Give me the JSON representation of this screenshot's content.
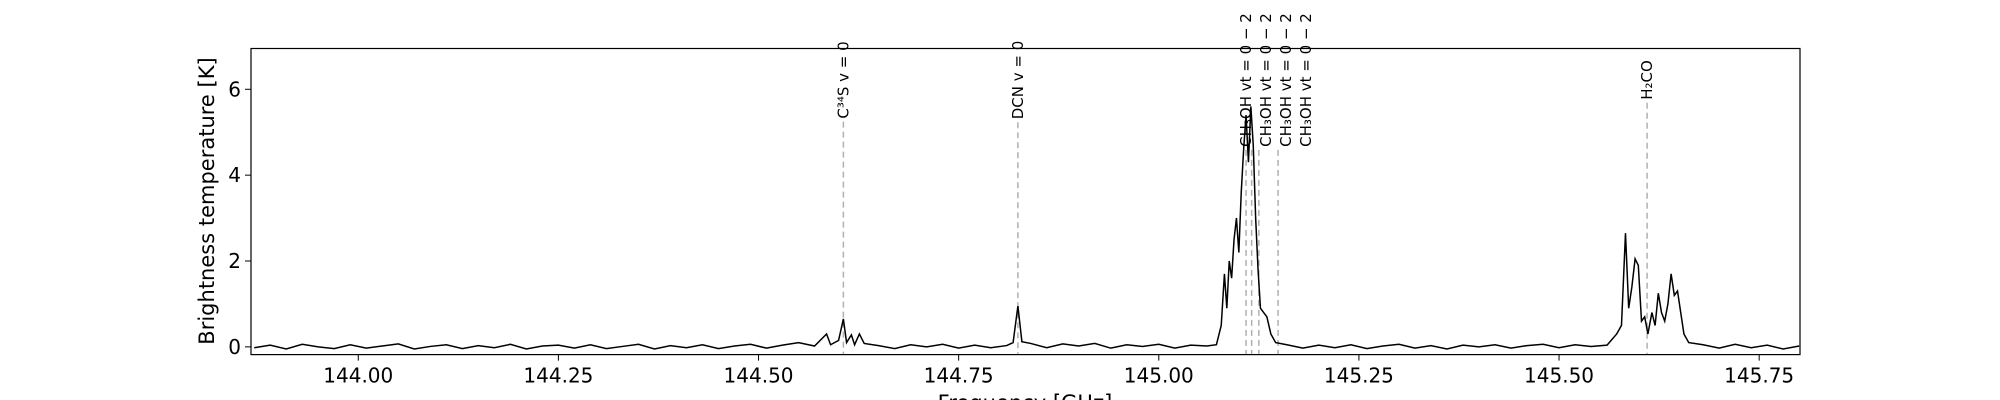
{
  "chart_data": {
    "type": "line",
    "x_label": "Frequency [GHz]",
    "y_label": "Brightness temperature [K]",
    "xlim": [
      143.866,
      145.801
    ],
    "ylim": [
      -0.18,
      6.95
    ],
    "xticks": [
      {
        "value": 144,
        "label": "144.00"
      },
      {
        "value": 144.25,
        "label": "144.25"
      },
      {
        "value": 144.5,
        "label": "144.50"
      },
      {
        "value": 144.75,
        "label": "144.75"
      },
      {
        "value": 145,
        "label": "145.00"
      },
      {
        "value": 145.25,
        "label": "145.25"
      },
      {
        "value": 145.5,
        "label": "145.50"
      },
      {
        "value": 145.75,
        "label": "145.75"
      }
    ],
    "yticks": [
      0,
      2,
      4,
      6
    ],
    "color": "#000000",
    "annotation_color": "#b0b0b0",
    "annotations": [
      {
        "label": "C³⁴S v = 0",
        "x": 144.606
      },
      {
        "label": "DCN v = 0",
        "x": 144.824
      },
      {
        "label": "CH₃OH vt = 0 − 2",
        "x": 145.109
      },
      {
        "label": "CH₃OH vt = 0 − 2",
        "x": 145.116
      },
      {
        "label": "CH₃OH vt = 0 − 2",
        "x": 145.125
      },
      {
        "label": "CH₃OH vt = 0 − 2",
        "x": 145.149
      },
      {
        "label": "H₂CO",
        "x": 145.61
      }
    ],
    "x": [
      143.87,
      143.89,
      143.91,
      143.93,
      143.95,
      143.97,
      143.99,
      144.01,
      144.03,
      144.05,
      144.07,
      144.09,
      144.11,
      144.13,
      144.15,
      144.17,
      144.19,
      144.21,
      144.23,
      144.25,
      144.27,
      144.29,
      144.31,
      144.33,
      144.35,
      144.37,
      144.39,
      144.41,
      144.43,
      144.45,
      144.47,
      144.49,
      144.51,
      144.53,
      144.55,
      144.57,
      144.585,
      144.59,
      144.6,
      144.606,
      144.61,
      144.616,
      144.62,
      144.626,
      144.632,
      144.65,
      144.67,
      144.69,
      144.71,
      144.73,
      144.75,
      144.77,
      144.79,
      144.81,
      144.818,
      144.824,
      144.829,
      144.84,
      144.86,
      144.88,
      144.9,
      144.92,
      144.94,
      144.96,
      144.98,
      145.0,
      145.02,
      145.04,
      145.06,
      145.072,
      145.078,
      145.082,
      145.085,
      145.088,
      145.091,
      145.094,
      145.097,
      145.1,
      145.103,
      145.106,
      145.109,
      145.112,
      145.115,
      145.118,
      145.121,
      145.124,
      145.127,
      145.131,
      145.135,
      145.14,
      145.146,
      145.16,
      145.18,
      145.2,
      145.22,
      145.24,
      145.26,
      145.28,
      145.3,
      145.32,
      145.34,
      145.36,
      145.38,
      145.4,
      145.42,
      145.44,
      145.46,
      145.48,
      145.5,
      145.52,
      145.54,
      145.56,
      145.572,
      145.578,
      145.583,
      145.587,
      145.591,
      145.595,
      145.599,
      145.603,
      145.607,
      145.611,
      145.616,
      145.62,
      145.624,
      145.628,
      145.632,
      145.636,
      145.64,
      145.644,
      145.648,
      145.652,
      145.656,
      145.662,
      145.68,
      145.7,
      145.72,
      145.74,
      145.76,
      145.78,
      145.8
    ],
    "values": [
      -0.02,
      0.04,
      -0.05,
      0.06,
      0.0,
      -0.04,
      0.05,
      -0.03,
      0.02,
      0.07,
      -0.05,
      0.01,
      0.05,
      -0.04,
      0.03,
      -0.02,
      0.06,
      -0.05,
      0.02,
      0.04,
      -0.03,
      0.05,
      -0.04,
      0.01,
      0.06,
      -0.05,
      0.03,
      -0.02,
      0.05,
      -0.04,
      0.02,
      0.06,
      -0.03,
      0.04,
      0.1,
      0.02,
      0.3,
      0.05,
      0.15,
      0.65,
      0.1,
      0.28,
      0.05,
      0.3,
      0.08,
      0.03,
      -0.04,
      0.05,
      0.0,
      0.06,
      -0.03,
      0.04,
      -0.02,
      0.03,
      0.1,
      0.95,
      0.12,
      0.08,
      -0.02,
      0.07,
      0.02,
      0.08,
      -0.03,
      0.05,
      0.01,
      0.06,
      -0.03,
      0.04,
      0.02,
      0.05,
      0.5,
      1.7,
      0.9,
      2.0,
      1.6,
      2.5,
      3.0,
      2.2,
      3.6,
      4.6,
      5.4,
      4.3,
      5.6,
      4.7,
      3.0,
      1.8,
      0.9,
      0.8,
      0.7,
      0.3,
      0.1,
      0.05,
      -0.03,
      0.04,
      -0.02,
      0.05,
      -0.04,
      0.02,
      0.06,
      -0.03,
      0.03,
      -0.05,
      0.04,
      0.0,
      0.05,
      -0.03,
      0.03,
      0.06,
      -0.02,
      0.05,
      0.01,
      0.04,
      0.3,
      0.5,
      2.65,
      0.9,
      1.4,
      2.05,
      1.9,
      0.6,
      0.7,
      0.3,
      0.8,
      0.5,
      1.25,
      0.8,
      0.6,
      1.0,
      1.7,
      1.2,
      1.3,
      0.8,
      0.3,
      0.1,
      0.05,
      -0.03,
      0.06,
      -0.02,
      0.04,
      -0.05,
      0.02
    ]
  }
}
